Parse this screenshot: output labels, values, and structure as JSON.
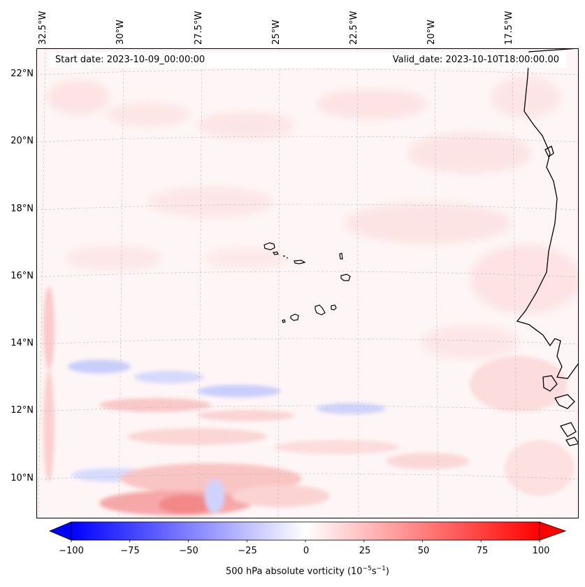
{
  "map": {
    "start_date": "Start date: 2023-10-09_00:00:00",
    "valid_date": "Valid_date: 2023-10-10T18:00:00.00",
    "lon_labels": [
      "32.5°W",
      "30°W",
      "27.5°W",
      "25°W",
      "22.5°W",
      "20°W",
      "17.5°W"
    ],
    "lat_labels": [
      "22°N",
      "20°N",
      "18°N",
      "16°N",
      "14°N",
      "12°N",
      "10°N"
    ],
    "features": [
      "Cape Verde Islands",
      "West African coastline"
    ]
  },
  "colorbar": {
    "ticks": [
      "−100",
      "−75",
      "−50",
      "−25",
      "0",
      "25",
      "50",
      "75",
      "100"
    ],
    "label_main": "500 hPa absolute vorticity (10",
    "label_exp1": "−5",
    "label_mid": "s",
    "label_exp2": "−1",
    "label_end": ")",
    "min": -100,
    "max": 100,
    "colors": {
      "negative": "#0000ff",
      "neutral": "#ffffff",
      "positive": "#ff0000"
    }
  }
}
